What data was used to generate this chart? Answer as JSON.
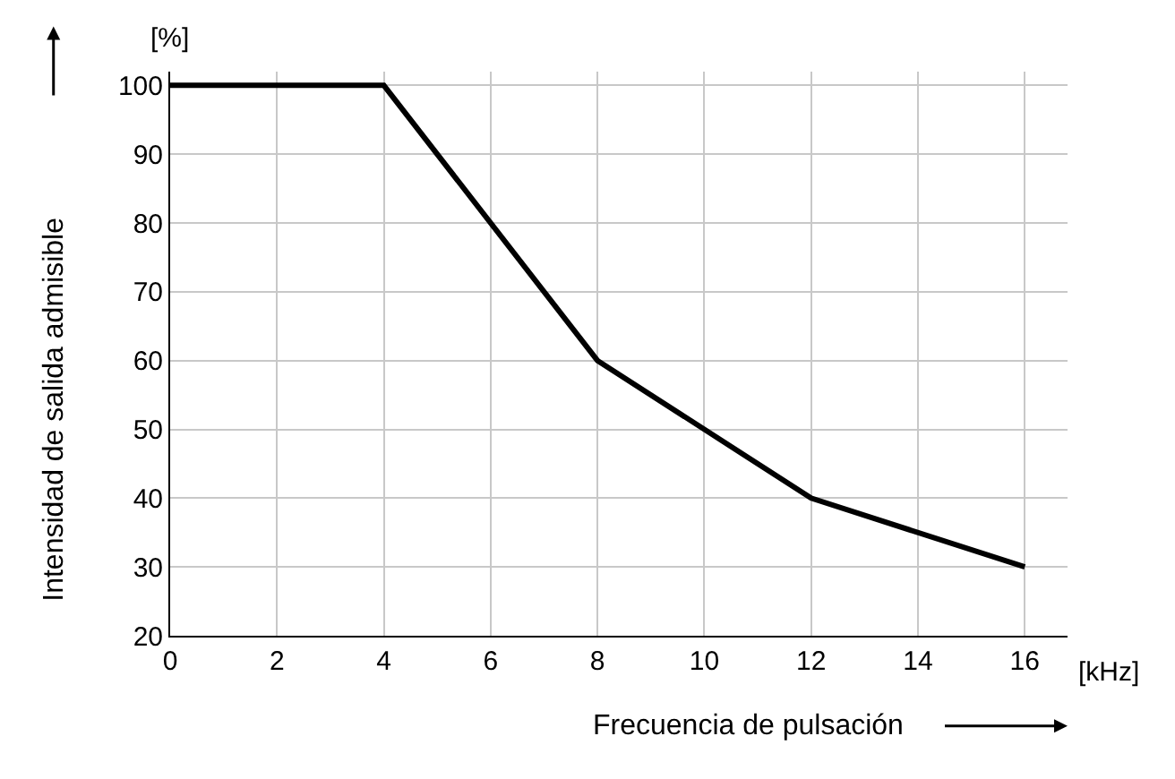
{
  "chart_data": {
    "type": "line",
    "xlabel": "Frecuencia de pulsación",
    "ylabel": "Intensidad de salida admisible",
    "x": [
      0,
      4,
      8,
      12,
      16
    ],
    "series": [
      {
        "color": "#000000",
        "values": [
          100,
          100,
          60,
          40,
          30
        ]
      }
    ],
    "xlim": [
      0,
      16.8
    ],
    "ylim": [
      20,
      102
    ],
    "xticks": [
      0,
      2,
      4,
      6,
      8,
      10,
      12,
      14,
      16
    ],
    "yticks": [
      20,
      30,
      40,
      50,
      60,
      70,
      80,
      90,
      100
    ],
    "annotations": [
      "[%]",
      "[kHz]"
    ],
    "grid": true,
    "marker": "none",
    "line_style": "solid"
  }
}
